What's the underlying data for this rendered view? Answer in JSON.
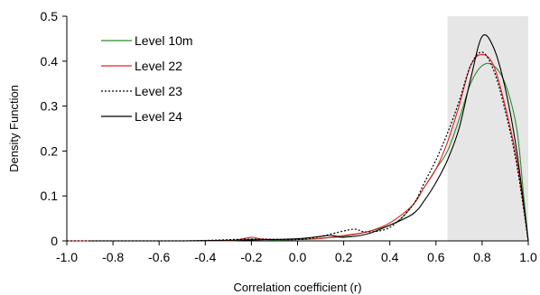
{
  "chart_data": {
    "type": "line",
    "title": "",
    "xlabel": "Correlation coefficient (r)",
    "ylabel": "Density Function",
    "xlim": [
      -1.0,
      1.0
    ],
    "ylim": [
      0,
      0.5
    ],
    "x_ticks": [
      "-1.0",
      "-0.8",
      "-0.6",
      "-0.4",
      "-0.2",
      "0.0",
      "0.2",
      "0.4",
      "0.6",
      "0.8",
      "1.0"
    ],
    "y_ticks": [
      "0",
      "0.1",
      "0.2",
      "0.3",
      "0.4",
      "0.5"
    ],
    "grid": false,
    "legend_position": "top-left",
    "shaded_region": {
      "x_from": 0.65,
      "x_to": 1.0,
      "color": "#e6e6e6"
    },
    "series": [
      {
        "name": "Level 10m",
        "color": "#2e8b2e",
        "style": "solid",
        "points": [
          [
            -1.0,
            0
          ],
          [
            -0.6,
            0
          ],
          [
            -0.3,
            0
          ],
          [
            -0.2,
            0.004
          ],
          [
            -0.1,
            0.002
          ],
          [
            0.0,
            0.003
          ],
          [
            0.1,
            0.006
          ],
          [
            0.2,
            0.01
          ],
          [
            0.3,
            0.02
          ],
          [
            0.4,
            0.035
          ],
          [
            0.45,
            0.05
          ],
          [
            0.5,
            0.08
          ],
          [
            0.55,
            0.12
          ],
          [
            0.6,
            0.16
          ],
          [
            0.65,
            0.2
          ],
          [
            0.7,
            0.27
          ],
          [
            0.75,
            0.35
          ],
          [
            0.8,
            0.39
          ],
          [
            0.85,
            0.39
          ],
          [
            0.9,
            0.35
          ],
          [
            0.95,
            0.25
          ],
          [
            0.98,
            0.1
          ],
          [
            1.0,
            0
          ]
        ]
      },
      {
        "name": "Level 22",
        "color": "#e8202a",
        "style": "solid",
        "points": [
          [
            -1.0,
            0
          ],
          [
            -0.5,
            0
          ],
          [
            -0.3,
            0
          ],
          [
            -0.2,
            0.008
          ],
          [
            -0.15,
            0.004
          ],
          [
            0.0,
            0.003
          ],
          [
            0.1,
            0.005
          ],
          [
            0.2,
            0.012
          ],
          [
            0.3,
            0.02
          ],
          [
            0.4,
            0.04
          ],
          [
            0.5,
            0.08
          ],
          [
            0.55,
            0.12
          ],
          [
            0.6,
            0.16
          ],
          [
            0.65,
            0.22
          ],
          [
            0.7,
            0.3
          ],
          [
            0.75,
            0.39
          ],
          [
            0.8,
            0.415
          ],
          [
            0.85,
            0.39
          ],
          [
            0.9,
            0.3
          ],
          [
            0.95,
            0.18
          ],
          [
            1.0,
            0
          ]
        ]
      },
      {
        "name": "Level 23",
        "color": "#000000",
        "style": "dotted",
        "points": [
          [
            -1.0,
            0
          ],
          [
            -0.5,
            0
          ],
          [
            -0.2,
            0.004
          ],
          [
            0.0,
            0.003
          ],
          [
            0.1,
            0.01
          ],
          [
            0.2,
            0.022
          ],
          [
            0.25,
            0.026
          ],
          [
            0.3,
            0.02
          ],
          [
            0.4,
            0.03
          ],
          [
            0.5,
            0.08
          ],
          [
            0.55,
            0.13
          ],
          [
            0.6,
            0.18
          ],
          [
            0.65,
            0.24
          ],
          [
            0.7,
            0.31
          ],
          [
            0.75,
            0.39
          ],
          [
            0.8,
            0.42
          ],
          [
            0.85,
            0.38
          ],
          [
            0.9,
            0.29
          ],
          [
            0.95,
            0.17
          ],
          [
            1.0,
            0
          ]
        ]
      },
      {
        "name": "Level 24",
        "color": "#000000",
        "style": "solid",
        "points": [
          [
            -0.9,
            0
          ],
          [
            -0.5,
            0
          ],
          [
            -0.2,
            0.002
          ],
          [
            0.0,
            0.005
          ],
          [
            0.1,
            0.01
          ],
          [
            0.15,
            0.012
          ],
          [
            0.2,
            0.008
          ],
          [
            0.3,
            0.015
          ],
          [
            0.4,
            0.035
          ],
          [
            0.5,
            0.06
          ],
          [
            0.55,
            0.09
          ],
          [
            0.6,
            0.13
          ],
          [
            0.65,
            0.18
          ],
          [
            0.7,
            0.25
          ],
          [
            0.75,
            0.36
          ],
          [
            0.8,
            0.455
          ],
          [
            0.85,
            0.43
          ],
          [
            0.9,
            0.34
          ],
          [
            0.95,
            0.2
          ],
          [
            1.0,
            0
          ]
        ]
      }
    ]
  }
}
